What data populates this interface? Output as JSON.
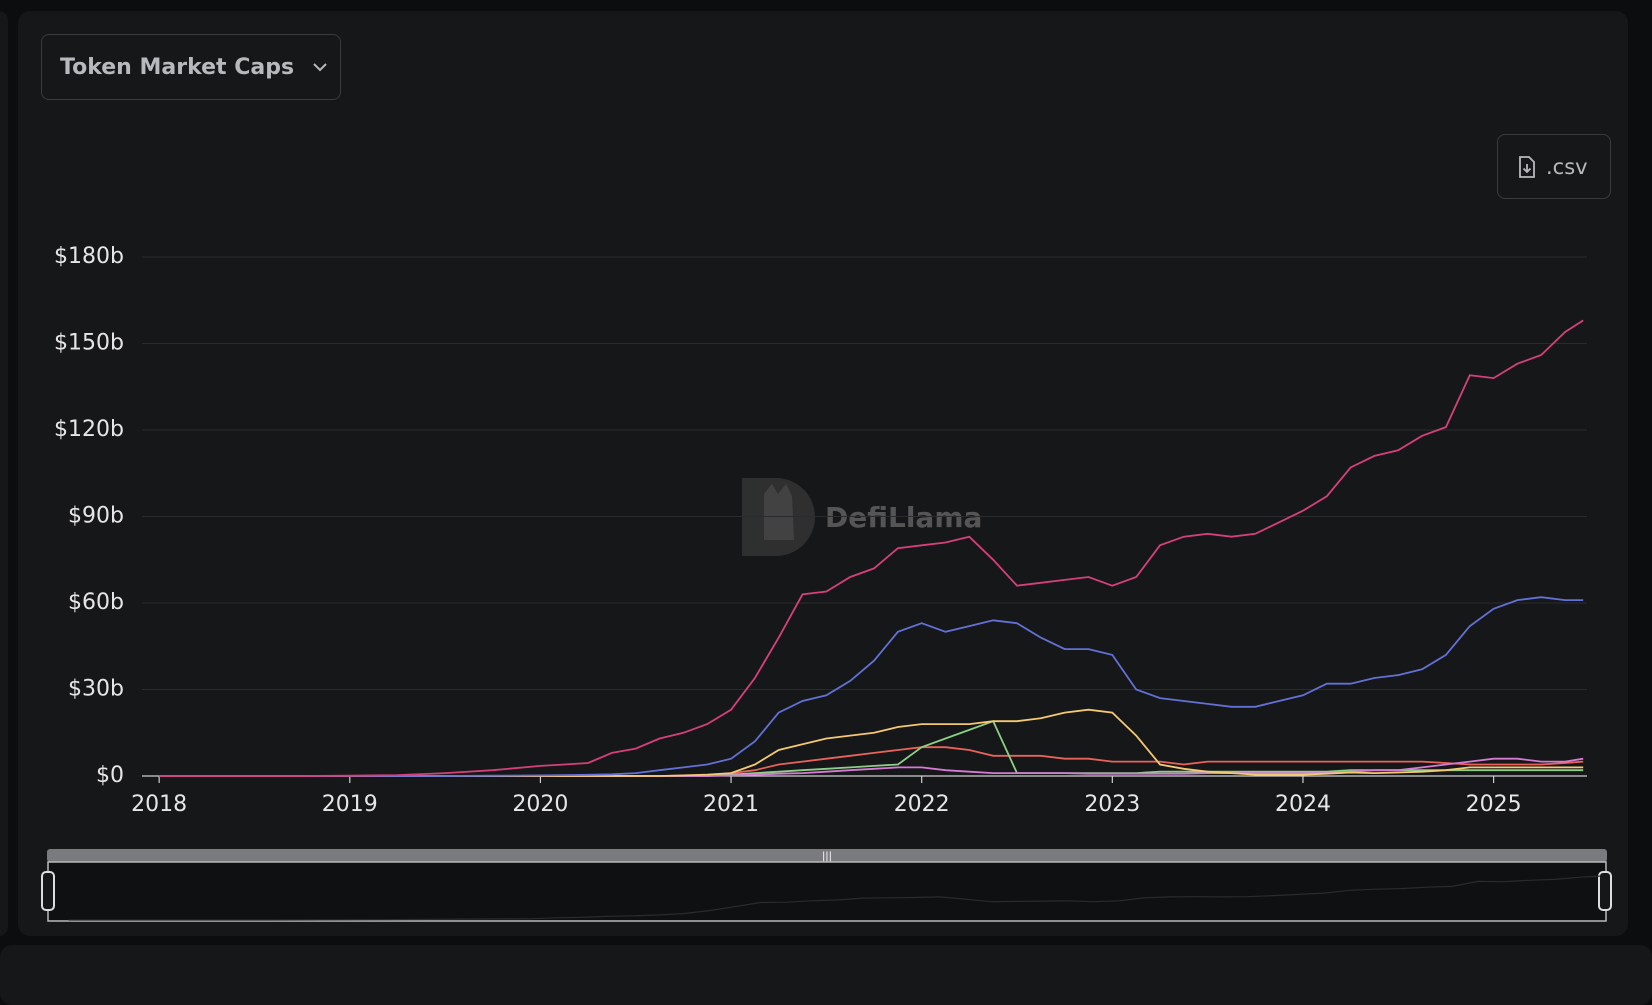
{
  "header": {
    "dropdown": "Token Market Caps",
    "download": ".csv"
  },
  "watermark": "DefiLlama",
  "chart_data": {
    "type": "line",
    "x": [
      2018,
      2018.25,
      2018.5,
      2018.75,
      2019,
      2019.25,
      2019.5,
      2019.75,
      2020,
      2020.125,
      2020.25,
      2020.375,
      2020.5,
      2020.625,
      2020.75,
      2020.875,
      2021,
      2021.125,
      2021.25,
      2021.375,
      2021.5,
      2021.625,
      2021.75,
      2021.875,
      2022,
      2022.125,
      2022.25,
      2022.375,
      2022.5,
      2022.625,
      2022.75,
      2022.875,
      2023,
      2023.125,
      2023.25,
      2023.375,
      2023.5,
      2023.625,
      2023.75,
      2023.875,
      2024,
      2024.125,
      2024.25,
      2024.375,
      2024.5,
      2024.625,
      2024.75,
      2024.875,
      2025,
      2025.125,
      2025.25,
      2025.375,
      2025.47
    ],
    "series": [
      {
        "color": "#e8635a",
        "values": [
          0,
          0,
          0,
          0,
          0,
          0,
          0,
          0,
          0,
          0,
          0,
          0,
          0,
          0,
          0.1,
          0.3,
          1,
          2,
          4,
          5,
          6,
          7,
          8,
          9,
          10,
          10,
          9,
          7,
          7,
          7,
          6,
          6,
          5,
          5,
          5,
          4,
          5,
          5,
          5,
          5,
          5,
          5,
          5,
          5,
          5,
          5,
          4.5,
          4,
          4,
          4,
          4,
          4.5,
          5
        ]
      },
      {
        "color": "#8ccf86",
        "values": [
          0,
          0,
          0,
          0,
          0,
          0,
          0,
          0,
          0,
          0,
          0,
          0,
          0,
          0,
          0,
          0,
          0.5,
          1,
          1.5,
          2,
          2.5,
          3,
          3.5,
          4,
          10,
          13,
          16,
          19,
          1,
          1,
          1,
          1,
          1,
          1,
          1.5,
          1.5,
          1.5,
          1.5,
          1.5,
          1.5,
          1.5,
          1.5,
          2,
          2,
          2,
          2,
          2,
          2,
          2,
          2,
          2,
          2,
          2
        ]
      },
      {
        "color": "#d67ad6",
        "values": [
          0,
          0,
          0,
          0,
          0,
          0,
          0,
          0,
          0,
          0,
          0,
          0,
          0,
          0,
          0,
          0,
          0.2,
          0.5,
          0.8,
          1,
          1.5,
          2,
          2.5,
          3,
          3,
          2,
          1.5,
          1,
          1,
          1,
          1,
          0.8,
          0.8,
          0.8,
          0.8,
          0.8,
          1,
          1,
          1,
          1,
          1,
          1,
          1.5,
          2,
          2,
          3,
          4,
          5,
          6,
          6,
          5,
          5,
          6
        ]
      },
      {
        "color": "#f5c971",
        "values": [
          0,
          0,
          0,
          0,
          0,
          0,
          0,
          0,
          0,
          0,
          0,
          0,
          0,
          0,
          0.2,
          0.5,
          1,
          4,
          9,
          11,
          13,
          14,
          15,
          17,
          18,
          18,
          18,
          19,
          19,
          20,
          22,
          23,
          22,
          14,
          4,
          2.5,
          1.5,
          1,
          0.5,
          0.5,
          0.5,
          0.8,
          1.2,
          1,
          1.2,
          1.5,
          2,
          3,
          3,
          3,
          3,
          3,
          3
        ]
      },
      {
        "color": "#6271d6",
        "values": [
          0,
          0,
          0,
          0,
          0,
          0,
          0,
          0.1,
          0.2,
          0.3,
          0.4,
          0.6,
          1,
          2,
          3,
          4,
          6,
          12,
          22,
          26,
          28,
          33,
          40,
          50,
          53,
          50,
          52,
          54,
          53,
          48,
          44,
          44,
          42,
          30,
          27,
          26,
          25,
          24,
          24,
          26,
          28,
          32,
          32,
          34,
          35,
          37,
          42,
          52,
          58,
          61,
          62,
          61,
          61
        ]
      },
      {
        "color": "#d6407a",
        "values": [
          0,
          0,
          0,
          0,
          0.1,
          0.3,
          1,
          2,
          3.5,
          4,
          4.5,
          8,
          9.5,
          13,
          15,
          18,
          23,
          34,
          48,
          63,
          64,
          69,
          72,
          79,
          80,
          81,
          83,
          75,
          66,
          67,
          68,
          69,
          66,
          69,
          80,
          83,
          84,
          83,
          84,
          88,
          92,
          97,
          107,
          111,
          113,
          118,
          121,
          139,
          138,
          143,
          146,
          154,
          158
        ]
      }
    ],
    "xlim": [
      2017.91,
      2025.49
    ],
    "xticks": [
      2018,
      2019,
      2020,
      2021,
      2022,
      2023,
      2024,
      2025
    ],
    "ylim": [
      0,
      180
    ],
    "yticks": [
      {
        "value": 0,
        "label": "$0"
      },
      {
        "value": 30,
        "label": "$30b"
      },
      {
        "value": 60,
        "label": "$60b"
      },
      {
        "value": 90,
        "label": "$90b"
      },
      {
        "value": 120,
        "label": "$120b"
      },
      {
        "value": 150,
        "label": "$150b"
      },
      {
        "value": 180,
        "label": "$180b"
      }
    ],
    "grid": true
  }
}
